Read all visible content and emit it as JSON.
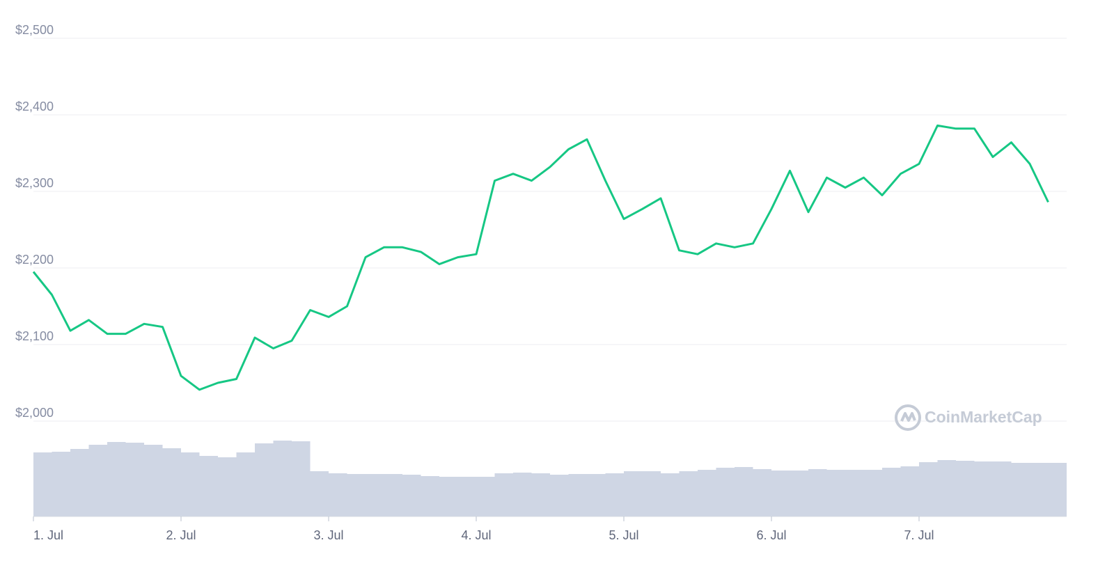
{
  "chart_data": {
    "type": "line",
    "watermark": "CoinMarketCap",
    "categories": [
      "1. Jul",
      null,
      null,
      null,
      null,
      null,
      null,
      null,
      "2. Jul",
      null,
      null,
      null,
      null,
      null,
      null,
      null,
      "3. Jul",
      null,
      null,
      null,
      null,
      null,
      null,
      null,
      "4. Jul",
      null,
      null,
      null,
      null,
      null,
      null,
      null,
      "5. Jul",
      null,
      null,
      null,
      null,
      null,
      null,
      null,
      "6. Jul",
      null,
      null,
      null,
      null,
      null,
      null,
      null,
      "7. Jul",
      null,
      null,
      null,
      null,
      null,
      null,
      null
    ],
    "series": [
      {
        "name": "Price",
        "color": "#16c784",
        "values": [
          2195,
          2165,
          2118,
          2132,
          2114,
          2114,
          2127,
          2123,
          2059,
          2041,
          2050,
          2055,
          2109,
          2095,
          2105,
          2145,
          2136,
          2150,
          2214,
          2227,
          2227,
          2221,
          2205,
          2214,
          2218,
          2314,
          2323,
          2314,
          2332,
          2355,
          2368,
          2314,
          2264,
          2277,
          2291,
          2223,
          2218,
          2232,
          2227,
          2232,
          2277,
          2327,
          2273,
          2318,
          2305,
          2318,
          2295,
          2323,
          2336,
          2386,
          2382,
          2382,
          2345,
          2364,
          2336,
          2286
        ]
      },
      {
        "name": "Volume",
        "color": "#cfd6e4",
        "axis": "y2",
        "values": [
          92,
          93,
          97,
          103,
          107,
          106,
          103,
          98,
          92,
          87,
          85,
          92,
          105,
          109,
          108,
          65,
          62,
          61,
          61,
          61,
          60,
          58,
          57,
          57,
          57,
          62,
          63,
          62,
          60,
          61,
          61,
          62,
          65,
          65,
          62,
          65,
          67,
          70,
          71,
          68,
          66,
          66,
          68,
          67,
          67,
          67,
          70,
          72,
          78,
          81,
          80,
          79,
          79,
          77,
          77,
          77
        ]
      }
    ],
    "ylim": [
      2000,
      2500
    ],
    "yticks": [
      {
        "value": 2000,
        "label": "$2,000"
      },
      {
        "value": 2100,
        "label": "$2,100"
      },
      {
        "value": 2200,
        "label": "$2,200"
      },
      {
        "value": 2300,
        "label": "$2,300"
      },
      {
        "value": 2400,
        "label": "$2,400"
      },
      {
        "value": 2500,
        "label": "$2,500"
      }
    ],
    "y2lim": [
      0,
      120
    ],
    "grid": true
  }
}
